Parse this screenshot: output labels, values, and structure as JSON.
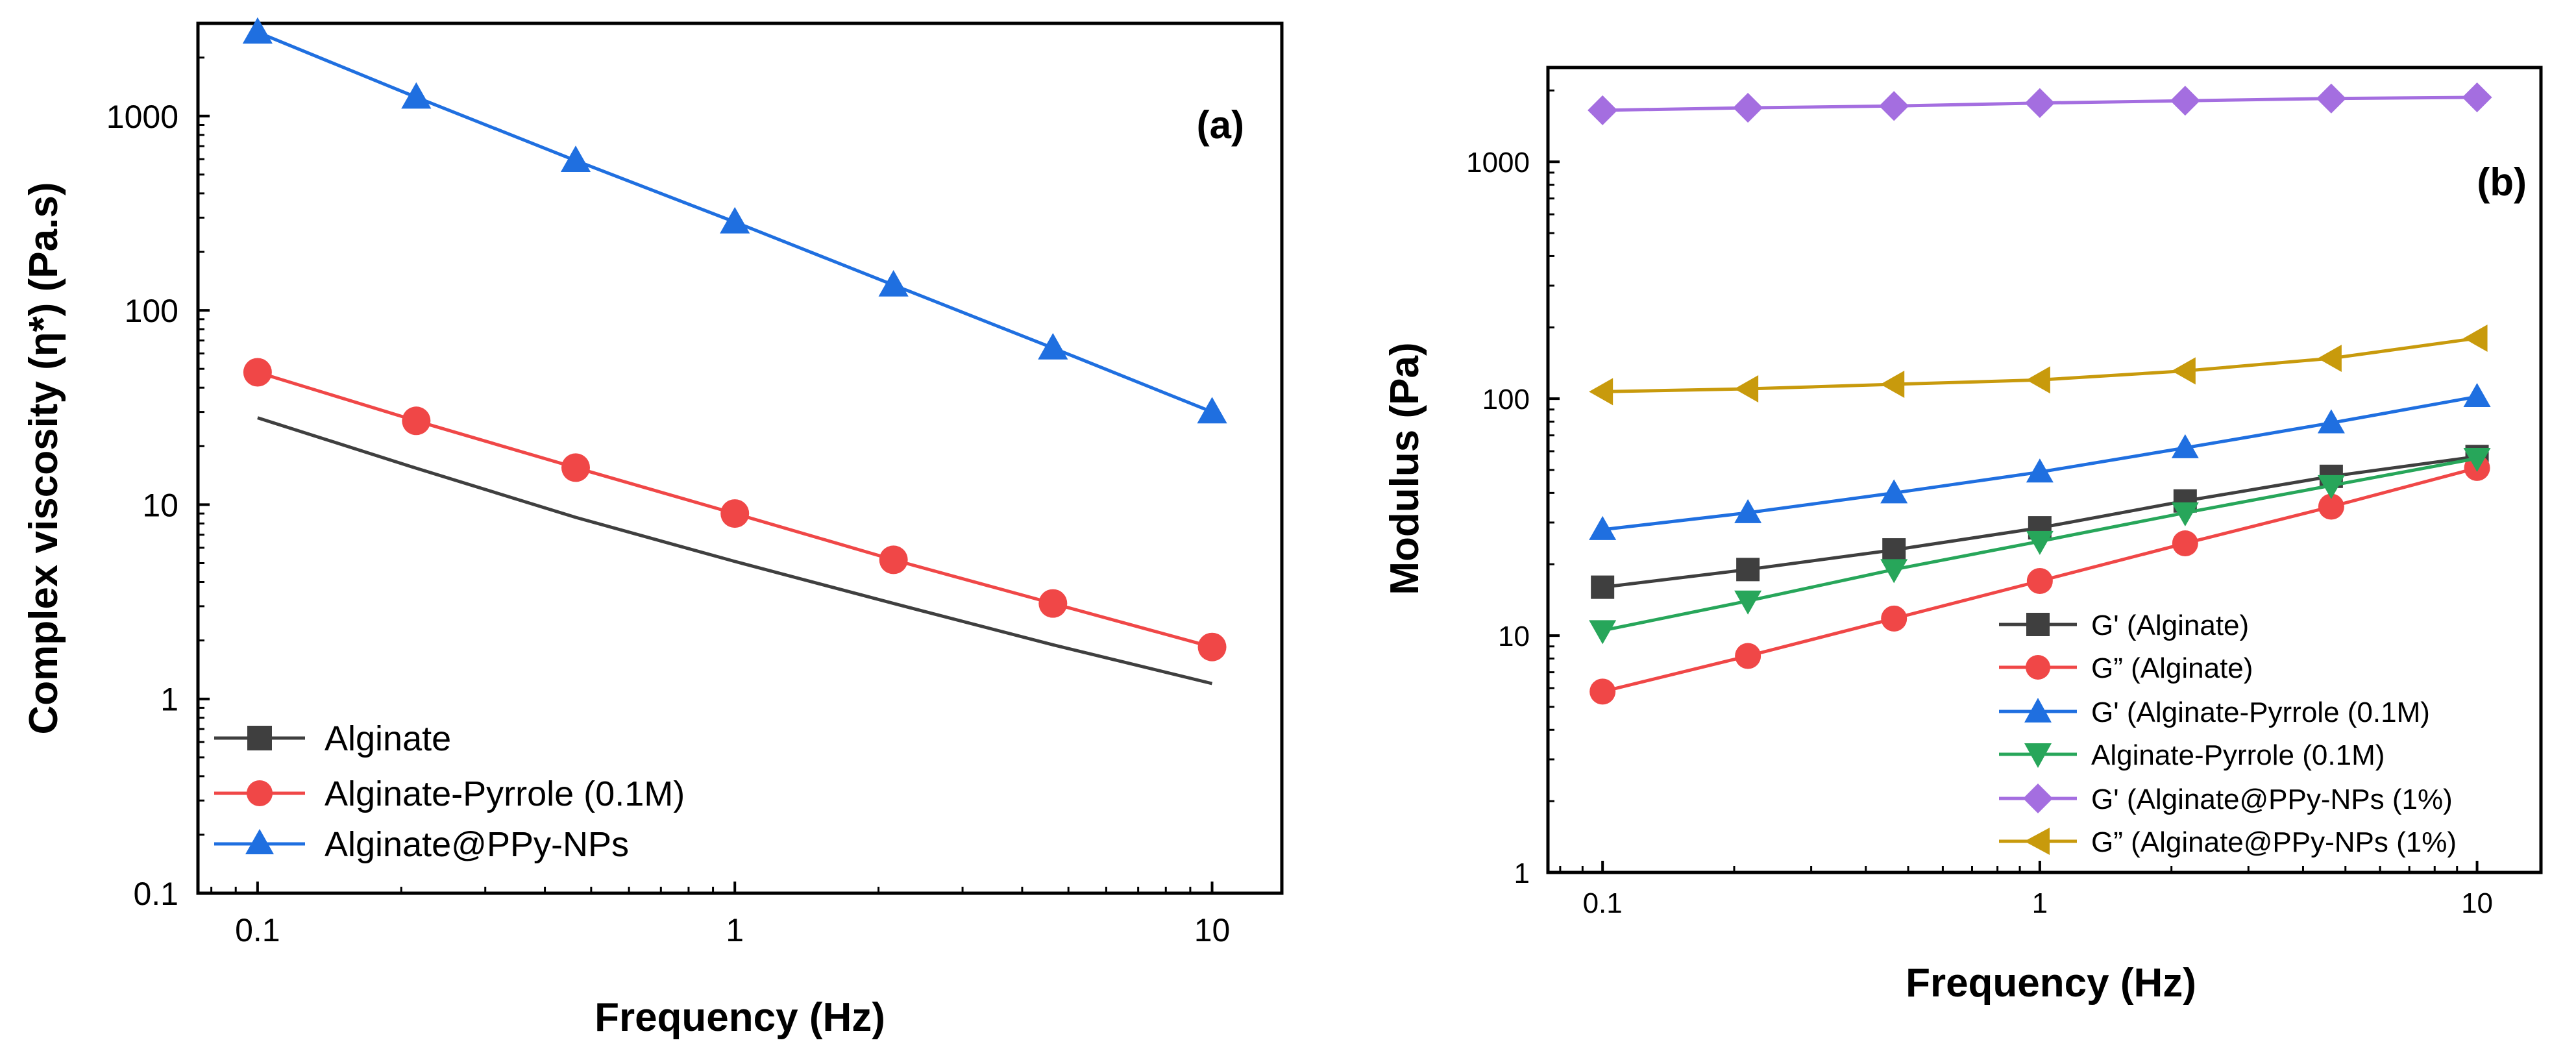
{
  "chart_data": [
    {
      "type": "line",
      "panel": "(a)",
      "xlabel": "Frequency (Hz)",
      "ylabel": "Complex viscosity (η*) (Pa.s)",
      "xscale": "log",
      "yscale": "log",
      "xlim": [
        0.075,
        14
      ],
      "ylim": [
        0.1,
        3000
      ],
      "x_ticks": [
        0.1,
        1,
        10
      ],
      "x_tick_labels": [
        "0.1",
        "1",
        "10"
      ],
      "y_ticks": [
        0.1,
        1,
        10,
        100,
        1000
      ],
      "y_tick_labels": [
        "0.1",
        "1",
        "10",
        "100",
        "1000"
      ],
      "legend_position": "bottom-left",
      "x": [
        0.1,
        0.215,
        0.464,
        1,
        2.15,
        4.64,
        10
      ],
      "series": [
        {
          "name": "Alginate",
          "marker": "square",
          "color": "#3f3f3f",
          "show_markers": false,
          "values": [
            28,
            15.4,
            8.6,
            5.1,
            3.1,
            1.9,
            1.2
          ]
        },
        {
          "name": "Alginate-Pyrrole (0.1M)",
          "marker": "circle",
          "color": "#f04747",
          "show_markers": true,
          "values": [
            48,
            27,
            15.5,
            9,
            5.2,
            3.1,
            1.85
          ]
        },
        {
          "name": "Alginate@PPy-NPs",
          "marker": "triangle-up",
          "color": "#1f6fe0",
          "show_markers": true,
          "values": [
            2700,
            1250,
            590,
            285,
            135,
            64,
            30
          ]
        }
      ]
    },
    {
      "type": "line",
      "panel": "(b)",
      "xlabel": "Frequency (Hz)",
      "ylabel": "Modulus (Pa)",
      "xscale": "log",
      "yscale": "log",
      "xlim": [
        0.075,
        14
      ],
      "ylim": [
        1,
        2500
      ],
      "x_ticks": [
        0.1,
        1,
        10
      ],
      "x_tick_labels": [
        "0.1",
        "1",
        "10"
      ],
      "y_ticks": [
        1,
        10,
        100,
        1000
      ],
      "y_tick_labels": [
        "1",
        "10",
        "100",
        "1000"
      ],
      "legend_position": "bottom-right",
      "x": [
        0.1,
        0.215,
        0.464,
        1,
        2.15,
        4.64,
        10
      ],
      "series": [
        {
          "name": "G' (Alginate)",
          "marker": "square",
          "color": "#3f3f3f",
          "show_markers": true,
          "values": [
            16,
            19,
            23,
            28.5,
            37,
            47,
            57
          ]
        },
        {
          "name": "G” (Alginate)",
          "marker": "circle",
          "color": "#f04747",
          "show_markers": true,
          "values": [
            5.8,
            8.2,
            11.8,
            17,
            24.5,
            35,
            51
          ]
        },
        {
          "name": "G' (Alginate-Pyrrole (0.1M)",
          "marker": "triangle-up",
          "color": "#1f6fe0",
          "show_markers": true,
          "values": [
            28,
            33,
            40,
            49,
            62,
            79,
            102
          ]
        },
        {
          "name": "Alginate-Pyrrole (0.1M)",
          "marker": "triangle-down",
          "color": "#27a65a",
          "show_markers": true,
          "values": [
            10.5,
            14,
            19,
            25,
            33,
            43,
            56
          ]
        },
        {
          "name": "G' (Alginate@PPy-NPs (1%)",
          "marker": "diamond",
          "color": "#a46ee0",
          "show_markers": true,
          "values": [
            1650,
            1690,
            1720,
            1770,
            1810,
            1850,
            1870
          ]
        },
        {
          "name": "G” (Alginate@PPy-NPs (1%)",
          "marker": "triangle-left",
          "color": "#c89a0c",
          "show_markers": true,
          "values": [
            107,
            110,
            115,
            120,
            131,
            148,
            180
          ]
        }
      ]
    }
  ]
}
